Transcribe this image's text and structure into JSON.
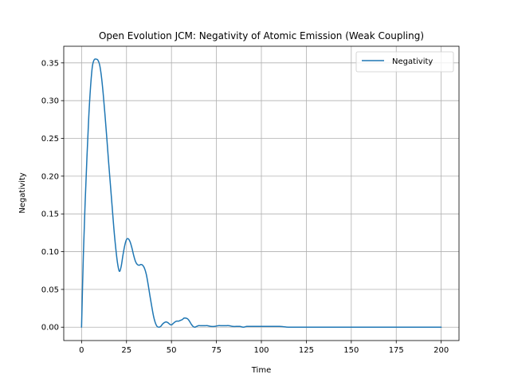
{
  "chart_data": {
    "type": "line",
    "title": "Open Evolution JCM: Negativity of Atomic Emission (Weak Coupling)",
    "xlabel": "Time",
    "ylabel": "Negativity",
    "xlim": [
      -9.9,
      209.9
    ],
    "ylim": [
      -0.0177,
      0.372
    ],
    "xticks": [
      0,
      25,
      50,
      75,
      100,
      125,
      150,
      175,
      200
    ],
    "yticks": [
      0.0,
      0.05,
      0.1,
      0.15,
      0.2,
      0.25,
      0.3,
      0.35
    ],
    "xtick_labels": [
      "0",
      "25",
      "50",
      "75",
      "100",
      "125",
      "150",
      "175",
      "200"
    ],
    "ytick_labels": [
      "0.00",
      "0.05",
      "0.10",
      "0.15",
      "0.20",
      "0.25",
      "0.30",
      "0.35"
    ],
    "grid": true,
    "legend": {
      "position": "top-right"
    },
    "series": [
      {
        "name": "Negativity",
        "color": "#1f77b4",
        "x": [
          0,
          1,
          2,
          3,
          4,
          5,
          6,
          7,
          8,
          9,
          10,
          11,
          12,
          13,
          14,
          15,
          16,
          17,
          18,
          19,
          20,
          21,
          22,
          23,
          24,
          25,
          26,
          27,
          28,
          29,
          30,
          31,
          32,
          33,
          34,
          35,
          36,
          37,
          38,
          39,
          40,
          41,
          42,
          43,
          44,
          45,
          46,
          47,
          48,
          49,
          50,
          51,
          52,
          53,
          54,
          55,
          56,
          57,
          58,
          59,
          60,
          61,
          62,
          63,
          64,
          65,
          66,
          67,
          68,
          69,
          70,
          72,
          74,
          76,
          78,
          80,
          82,
          84,
          86,
          88,
          90,
          92,
          95,
          100,
          105,
          110,
          115,
          120,
          125,
          130,
          140,
          150,
          160,
          170,
          180,
          190,
          200
        ],
        "y": [
          0.0,
          0.095,
          0.165,
          0.225,
          0.278,
          0.318,
          0.345,
          0.354,
          0.355,
          0.354,
          0.348,
          0.333,
          0.31,
          0.282,
          0.252,
          0.22,
          0.19,
          0.16,
          0.13,
          0.105,
          0.085,
          0.074,
          0.08,
          0.095,
          0.108,
          0.116,
          0.117,
          0.113,
          0.105,
          0.095,
          0.087,
          0.083,
          0.082,
          0.083,
          0.082,
          0.078,
          0.07,
          0.057,
          0.042,
          0.028,
          0.015,
          0.006,
          0.001,
          0.0,
          0.001,
          0.004,
          0.006,
          0.007,
          0.006,
          0.004,
          0.003,
          0.005,
          0.007,
          0.008,
          0.008,
          0.009,
          0.01,
          0.012,
          0.012,
          0.011,
          0.008,
          0.004,
          0.001,
          0.0,
          0.001,
          0.002,
          0.002,
          0.002,
          0.002,
          0.002,
          0.002,
          0.001,
          0.001,
          0.002,
          0.002,
          0.002,
          0.002,
          0.001,
          0.001,
          0.001,
          0.0,
          0.001,
          0.001,
          0.001,
          0.001,
          0.001,
          0.0,
          0.0,
          0.0,
          0.0,
          0.0,
          0.0,
          0.0,
          0.0,
          0.0,
          0.0,
          0.0
        ]
      }
    ]
  }
}
